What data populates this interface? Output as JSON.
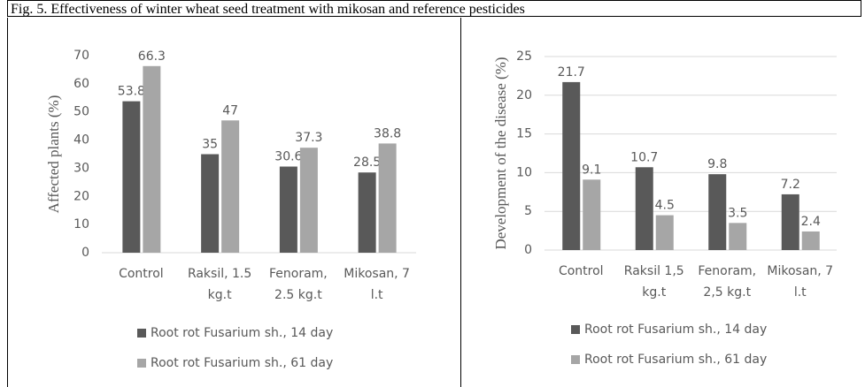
{
  "caption": "Fig.  5. Effectiveness of winter wheat seed treatment with mikosan and reference pesticides",
  "chart_data": [
    {
      "type": "bar",
      "ylabel": "Affected plants (%)",
      "categories": [
        "Control",
        "Raksil, 1.5 kg.t",
        "Fenoram, 2.5 kg.t",
        "Mikosan, 7 l.t"
      ],
      "series": [
        {
          "name": "Root rot Fusarium sh., 14 day",
          "color": "#595959",
          "values": [
            53.8,
            35,
            30.6,
            28.5
          ]
        },
        {
          "name": "Root rot Fusarium sh., 61 day",
          "color": "#a6a6a6",
          "values": [
            66.3,
            47,
            37.3,
            38.8
          ]
        }
      ],
      "ylim": [
        0,
        70
      ],
      "yticks": [
        0,
        10,
        20,
        30,
        40,
        50,
        60,
        70
      ],
      "grid": false
    },
    {
      "type": "bar",
      "ylabel": "Development of the disease (%)",
      "categories": [
        "Control",
        "Raksil 1,5 kg.t",
        "Fenoram, 2,5 kg.t",
        "Mikosan, 7 l.t"
      ],
      "series": [
        {
          "name": "Root rot Fusarium sh., 14 day",
          "color": "#595959",
          "values": [
            21.7,
            10.7,
            9.8,
            7.2
          ]
        },
        {
          "name": "Root rot Fusarium sh., 61 day",
          "color": "#a6a6a6",
          "values": [
            9.1,
            4.5,
            3.5,
            2.4
          ]
        }
      ],
      "ylim": [
        0,
        25
      ],
      "yticks": [
        0,
        5,
        10,
        15,
        20,
        25
      ],
      "grid": true
    }
  ]
}
